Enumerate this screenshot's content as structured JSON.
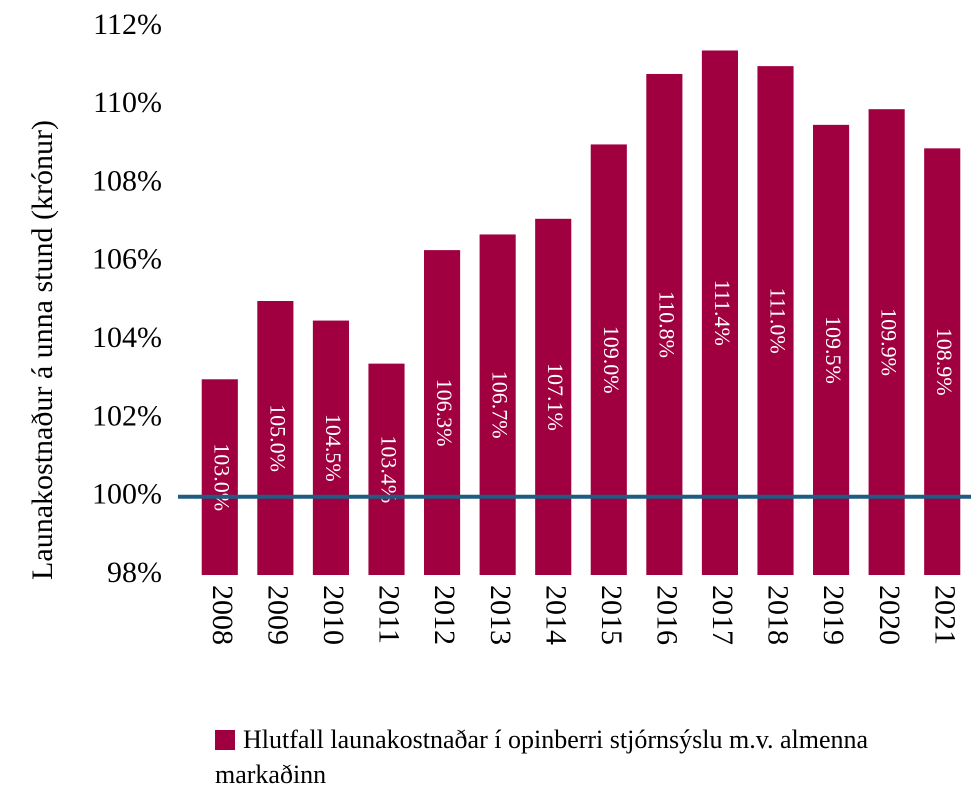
{
  "chart_data": {
    "type": "bar",
    "y_axis_label": "Launakostnaður á unna stund (krónur)",
    "categories": [
      "2008",
      "2009",
      "2010",
      "2011",
      "2012",
      "2013",
      "2014",
      "2015",
      "2016",
      "2017",
      "2018",
      "2019",
      "2020",
      "2021"
    ],
    "series": [
      {
        "name": "Hlutfall launakostnaðar í opinberri stjórnsýslu m.v. almenna markaðinn",
        "color": "#a0003f",
        "values": [
          103.0,
          105.0,
          104.5,
          103.4,
          106.3,
          106.7,
          107.1,
          109.0,
          110.8,
          111.4,
          111.0,
          109.5,
          109.9,
          108.9
        ],
        "value_labels": [
          "103.0%",
          "105.0%",
          "104.5%",
          "103.4%",
          "106.3%",
          "106.7%",
          "107.1%",
          "109.0%",
          "110.8%",
          "111.4%",
          "111.0%",
          "109.5%",
          "109.9%",
          "108.9%"
        ]
      }
    ],
    "reference_line": {
      "value": 100,
      "color": "#1f5b82"
    },
    "ylim": [
      98,
      112
    ],
    "yticks": [
      {
        "value": 98,
        "label": "98%"
      },
      {
        "value": 100,
        "label": "100%"
      },
      {
        "value": 102,
        "label": "102%"
      },
      {
        "value": 104,
        "label": "104%"
      },
      {
        "value": 106,
        "label": "106%"
      },
      {
        "value": 108,
        "label": "108%"
      },
      {
        "value": 110,
        "label": "110%"
      },
      {
        "value": 112,
        "label": "112%"
      }
    ],
    "legend": "bottom"
  }
}
